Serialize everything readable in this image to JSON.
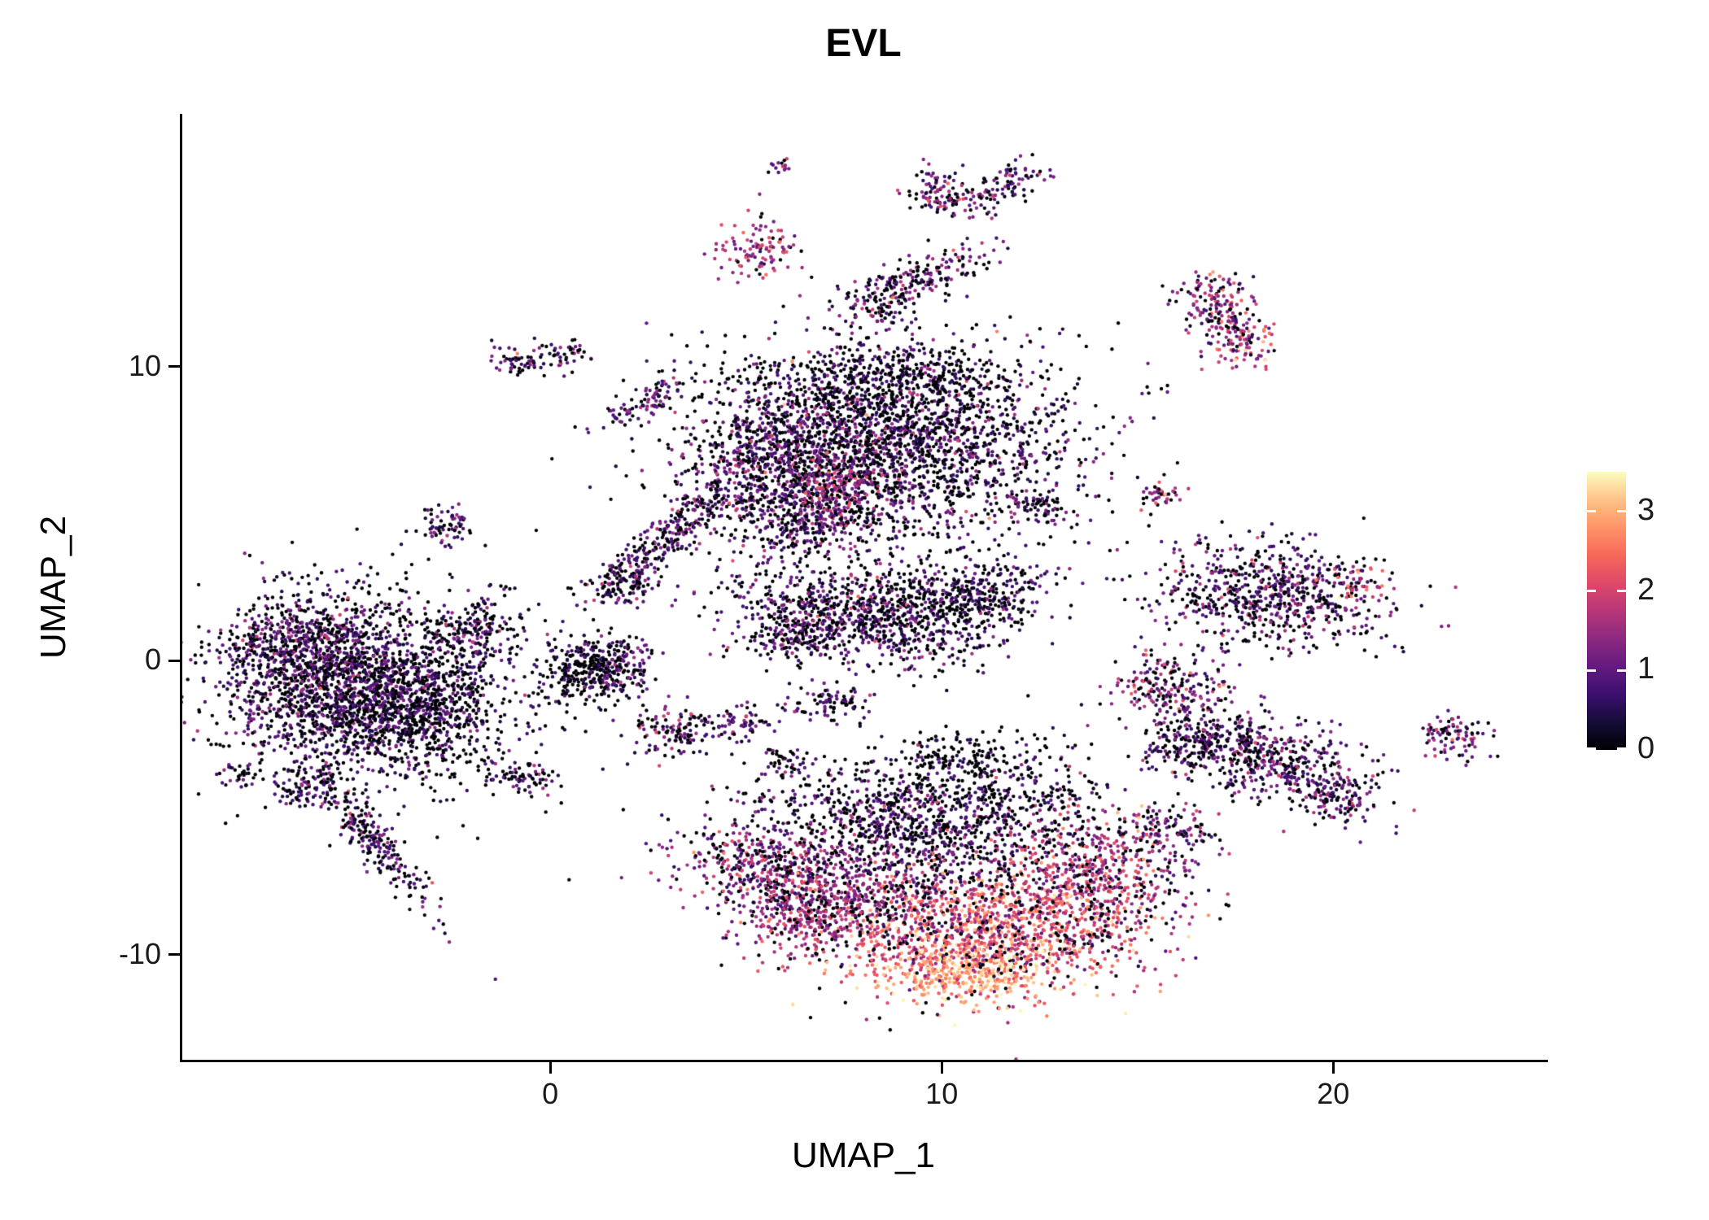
{
  "chart_data": {
    "type": "scatter",
    "title": "EVL",
    "xlabel": "UMAP_1",
    "ylabel": "UMAP_2",
    "xlim": [
      -9.4,
      25.4
    ],
    "ylim": [
      -13.6,
      18.6
    ],
    "grid": false,
    "legend_position": "right",
    "xticks": {
      "values": [
        0,
        10,
        20
      ],
      "labels": [
        "0",
        "10",
        "20"
      ]
    },
    "yticks": {
      "values": [
        -10,
        0,
        10
      ],
      "labels": [
        "-10",
        "0",
        "10"
      ]
    },
    "colorbar": {
      "min": 0,
      "max": 3.5,
      "colormap": "magma",
      "ticks": {
        "values": [
          0,
          1,
          2,
          3
        ],
        "labels": [
          "0",
          "1",
          "2",
          "3"
        ]
      }
    },
    "point_radius_px": 2.2,
    "seed": 42,
    "clusters": [
      {
        "cx": -5.2,
        "cy": -0.6,
        "sx": 1.6,
        "sy": 1.5,
        "rot": 0,
        "n": 1600,
        "zero": 0.38,
        "mean": 0.75,
        "sd": 0.45
      },
      {
        "cx": -3.4,
        "cy": -1.7,
        "sx": 1.1,
        "sy": 1.1,
        "rot": 0,
        "n": 700,
        "zero": 0.46,
        "mean": 0.7,
        "sd": 0.4
      },
      {
        "cx": -6.6,
        "cy": 0.3,
        "sx": 0.9,
        "sy": 0.9,
        "rot": 0,
        "n": 350,
        "zero": 0.3,
        "mean": 0.9,
        "sd": 0.5
      },
      {
        "cx": -4.6,
        "cy": -5.9,
        "sx": 1.6,
        "sy": 0.25,
        "rot": -59,
        "n": 260,
        "zero": 0.3,
        "mean": 0.8,
        "sd": 0.5
      },
      {
        "cx": -6.4,
        "cy": -4.4,
        "sx": 0.35,
        "sy": 0.3,
        "rot": 0,
        "n": 60,
        "zero": 0.3,
        "mean": 0.8,
        "sd": 0.4
      },
      {
        "cx": -1.9,
        "cy": 0.9,
        "sx": 0.6,
        "sy": 0.7,
        "rot": 0,
        "n": 200,
        "zero": 0.4,
        "mean": 0.8,
        "sd": 0.5
      },
      {
        "cx": -4.5,
        "cy": -1.5,
        "sx": 2.6,
        "sy": 2.2,
        "rot": 0,
        "n": 250,
        "zero": 0.65,
        "mean": 0.45,
        "sd": 0.35
      },
      {
        "cx": 0.9,
        "cy": -0.5,
        "sx": 0.65,
        "sy": 0.55,
        "rot": 0,
        "n": 260,
        "zero": 0.6,
        "mean": 0.45,
        "sd": 0.35
      },
      {
        "cx": 1.6,
        "cy": -0.1,
        "sx": 0.5,
        "sy": 0.45,
        "rot": 0,
        "n": 150,
        "zero": 0.45,
        "mean": 0.8,
        "sd": 0.45
      },
      {
        "cx": -0.7,
        "cy": -4.0,
        "sx": 0.45,
        "sy": 0.3,
        "rot": 0,
        "n": 70,
        "zero": 0.35,
        "mean": 0.8,
        "sd": 0.5
      },
      {
        "cx": -2.7,
        "cy": 4.6,
        "sx": 0.45,
        "sy": 0.35,
        "rot": 20,
        "n": 70,
        "zero": 0.3,
        "mean": 0.8,
        "sd": 0.5
      },
      {
        "cx": -7.9,
        "cy": -3.9,
        "sx": 0.25,
        "sy": 0.2,
        "rot": 0,
        "n": 30,
        "zero": 0.35,
        "mean": 0.7,
        "sd": 0.4
      },
      {
        "cx": 2.8,
        "cy": 4.1,
        "sx": 1.5,
        "sy": 0.3,
        "rot": 48,
        "n": 280,
        "zero": 0.35,
        "mean": 0.8,
        "sd": 0.5
      },
      {
        "cx": 1.9,
        "cy": 2.7,
        "sx": 0.4,
        "sy": 0.35,
        "rot": 0,
        "n": 90,
        "zero": 0.35,
        "mean": 0.9,
        "sd": 0.5
      },
      {
        "cx": 8.6,
        "cy": 7.4,
        "sx": 2.2,
        "sy": 1.6,
        "rot": 0,
        "n": 2100,
        "zero": 0.38,
        "mean": 0.8,
        "sd": 0.5,
        "hi": 0.008
      },
      {
        "cx": 5.6,
        "cy": 6.4,
        "sx": 1.1,
        "sy": 1.3,
        "rot": 0,
        "n": 650,
        "zero": 0.3,
        "mean": 0.95,
        "sd": 0.5
      },
      {
        "cx": 7.3,
        "cy": 5.9,
        "sx": 0.55,
        "sy": 0.4,
        "rot": 0,
        "n": 120,
        "zero": 0.1,
        "mean": 1.7,
        "sd": 0.4
      },
      {
        "cx": 9.0,
        "cy": 9.6,
        "sx": 1.8,
        "sy": 0.6,
        "rot": 0,
        "n": 350,
        "zero": 0.55,
        "mean": 0.5,
        "sd": 0.35
      },
      {
        "cx": 6.7,
        "cy": 4.6,
        "sx": 0.9,
        "sy": 0.5,
        "rot": 20,
        "n": 200,
        "zero": 0.35,
        "mean": 0.9,
        "sd": 0.5
      },
      {
        "cx": 8.5,
        "cy": 7.2,
        "sx": 3.2,
        "sy": 2.4,
        "rot": 0,
        "n": 300,
        "zero": 0.7,
        "mean": 0.4,
        "sd": 0.35
      },
      {
        "cx": 8.0,
        "cy": 1.6,
        "sx": 1.7,
        "sy": 0.85,
        "rot": -8,
        "n": 900,
        "zero": 0.38,
        "mean": 0.8,
        "sd": 0.5
      },
      {
        "cx": 10.8,
        "cy": 2.2,
        "sx": 1.0,
        "sy": 0.7,
        "rot": 25,
        "n": 350,
        "zero": 0.45,
        "mean": 0.7,
        "sd": 0.45
      },
      {
        "cx": 6.3,
        "cy": 0.9,
        "sx": 0.5,
        "sy": 0.4,
        "rot": 0,
        "n": 120,
        "zero": 0.4,
        "mean": 0.8,
        "sd": 0.5
      },
      {
        "cx": 7.0,
        "cy": -1.4,
        "sx": 0.5,
        "sy": 0.35,
        "rot": 0,
        "n": 90,
        "zero": 0.4,
        "mean": 0.8,
        "sd": 0.4
      },
      {
        "cx": 3.3,
        "cy": -2.4,
        "sx": 0.55,
        "sy": 0.45,
        "rot": 0,
        "n": 130,
        "zero": 0.35,
        "mean": 1.0,
        "sd": 0.6
      },
      {
        "cx": 4.9,
        "cy": -2.1,
        "sx": 0.4,
        "sy": 0.3,
        "rot": 0,
        "n": 60,
        "zero": 0.35,
        "mean": 0.9,
        "sd": 0.5
      },
      {
        "cx": 6.1,
        "cy": -3.5,
        "sx": 0.35,
        "sy": 0.3,
        "rot": 0,
        "n": 50,
        "zero": 0.35,
        "mean": 0.9,
        "sd": 0.5
      },
      {
        "cx": 5.3,
        "cy": 13.9,
        "sx": 0.5,
        "sy": 0.55,
        "rot": 0,
        "n": 110,
        "zero": 0.12,
        "mean": 1.6,
        "sd": 0.5
      },
      {
        "cx": 9.3,
        "cy": 13.0,
        "sx": 1.1,
        "sy": 0.35,
        "rot": 25,
        "n": 200,
        "zero": 0.3,
        "mean": 1.0,
        "sd": 0.55
      },
      {
        "cx": 8.4,
        "cy": 12.0,
        "sx": 0.4,
        "sy": 0.3,
        "rot": 0,
        "n": 60,
        "zero": 0.35,
        "mean": 0.9,
        "sd": 0.5
      },
      {
        "cx": 10.0,
        "cy": 15.9,
        "sx": 0.55,
        "sy": 0.4,
        "rot": -15,
        "n": 110,
        "zero": 0.25,
        "mean": 1.1,
        "sd": 0.6
      },
      {
        "cx": 11.6,
        "cy": 16.1,
        "sx": 0.6,
        "sy": 0.3,
        "rot": 35,
        "n": 90,
        "zero": 0.3,
        "mean": 1.0,
        "sd": 0.5
      },
      {
        "cx": 5.9,
        "cy": 16.8,
        "sx": 0.18,
        "sy": 0.15,
        "rot": 0,
        "n": 14,
        "zero": 0.15,
        "mean": 1.5,
        "sd": 0.4
      },
      {
        "cx": -0.8,
        "cy": 10.2,
        "sx": 0.35,
        "sy": 0.25,
        "rot": 0,
        "n": 55,
        "zero": 0.3,
        "mean": 0.9,
        "sd": 0.5
      },
      {
        "cx": 0.4,
        "cy": 10.5,
        "sx": 0.3,
        "sy": 0.25,
        "rot": 0,
        "n": 45,
        "zero": 0.3,
        "mean": 0.9,
        "sd": 0.5
      },
      {
        "cx": 2.4,
        "cy": 8.8,
        "sx": 0.7,
        "sy": 0.25,
        "rot": 35,
        "n": 90,
        "zero": 0.3,
        "mean": 0.9,
        "sd": 0.5
      },
      {
        "cx": 5.6,
        "cy": -7.2,
        "sx": 1.15,
        "sy": 0.9,
        "rot": -20,
        "n": 480,
        "zero": 0.22,
        "mean": 1.25,
        "sd": 0.55
      },
      {
        "cx": 9.0,
        "cy": -5.6,
        "sx": 1.9,
        "sy": 1.0,
        "rot": -10,
        "n": 850,
        "zero": 0.4,
        "mean": 0.75,
        "sd": 0.5
      },
      {
        "cx": 11.2,
        "cy": -9.3,
        "sx": 1.9,
        "sy": 1.05,
        "rot": 5,
        "n": 950,
        "zero": 0.06,
        "mean": 2.3,
        "sd": 0.55
      },
      {
        "cx": 10.6,
        "cy": -10.7,
        "sx": 1.0,
        "sy": 0.5,
        "rot": 0,
        "n": 300,
        "zero": 0.03,
        "mean": 2.9,
        "sd": 0.35
      },
      {
        "cx": 13.8,
        "cy": -7.3,
        "sx": 1.2,
        "sy": 1.15,
        "rot": 0,
        "n": 600,
        "zero": 0.18,
        "mean": 1.6,
        "sd": 0.6
      },
      {
        "cx": 8.3,
        "cy": -8.2,
        "sx": 1.5,
        "sy": 0.85,
        "rot": -15,
        "n": 520,
        "zero": 0.2,
        "mean": 1.4,
        "sd": 0.55
      },
      {
        "cx": 11.7,
        "cy": -4.3,
        "sx": 1.4,
        "sy": 0.9,
        "rot": 0,
        "n": 260,
        "zero": 0.55,
        "mean": 0.5,
        "sd": 0.4
      },
      {
        "cx": 12.6,
        "cy": -9.6,
        "sx": 1.2,
        "sy": 0.8,
        "rot": 0,
        "n": 150,
        "zero": 0.25,
        "mean": 1.8,
        "sd": 0.7
      },
      {
        "cx": 6.6,
        "cy": -8.8,
        "sx": 0.7,
        "sy": 0.6,
        "rot": 0,
        "n": 200,
        "zero": 0.15,
        "mean": 1.6,
        "sd": 0.5
      },
      {
        "cx": 10.3,
        "cy": -3.2,
        "sx": 1.0,
        "sy": 0.5,
        "rot": 0,
        "n": 100,
        "zero": 0.6,
        "mean": 0.4,
        "sd": 0.35
      },
      {
        "cx": 10.5,
        "cy": -7.5,
        "sx": 3.0,
        "sy": 2.2,
        "rot": 0,
        "n": 250,
        "zero": 0.6,
        "mean": 0.5,
        "sd": 0.4
      },
      {
        "cx": 15.8,
        "cy": -0.9,
        "sx": 0.7,
        "sy": 0.65,
        "rot": 0,
        "n": 220,
        "zero": 0.25,
        "mean": 1.1,
        "sd": 0.6,
        "hi": 0.04
      },
      {
        "cx": 16.4,
        "cy": -2.9,
        "sx": 0.6,
        "sy": 0.5,
        "rot": 0,
        "n": 160,
        "zero": 0.4,
        "mean": 0.8,
        "sd": 0.5
      },
      {
        "cx": 18.4,
        "cy": -3.4,
        "sx": 1.35,
        "sy": 0.7,
        "rot": -25,
        "n": 520,
        "zero": 0.3,
        "mean": 0.9,
        "sd": 0.55
      },
      {
        "cx": 20.2,
        "cy": -4.6,
        "sx": 0.5,
        "sy": 0.4,
        "rot": -30,
        "n": 90,
        "zero": 0.3,
        "mean": 0.9,
        "sd": 0.5
      },
      {
        "cx": 15.9,
        "cy": -5.8,
        "sx": 0.6,
        "sy": 0.4,
        "rot": -30,
        "n": 110,
        "zero": 0.3,
        "mean": 1.0,
        "sd": 0.6
      },
      {
        "cx": 18.4,
        "cy": 2.3,
        "sx": 1.6,
        "sy": 0.85,
        "rot": -5,
        "n": 700,
        "zero": 0.32,
        "mean": 0.9,
        "sd": 0.55,
        "hi": 0.02
      },
      {
        "cx": 20.6,
        "cy": 2.6,
        "sx": 0.4,
        "sy": 0.35,
        "rot": 0,
        "n": 40,
        "zero": 0.1,
        "mean": 1.8,
        "sd": 0.6
      },
      {
        "cx": 16.9,
        "cy": 12.2,
        "sx": 0.45,
        "sy": 0.5,
        "rot": 0,
        "n": 110,
        "zero": 0.2,
        "mean": 1.3,
        "sd": 0.6,
        "hi": 0.06
      },
      {
        "cx": 17.7,
        "cy": 10.9,
        "sx": 0.5,
        "sy": 0.5,
        "rot": 0,
        "n": 110,
        "zero": 0.15,
        "mean": 1.6,
        "sd": 0.6,
        "hi": 0.06
      },
      {
        "cx": 17.3,
        "cy": 11.5,
        "sx": 0.25,
        "sy": 0.4,
        "rot": 0,
        "n": 40,
        "zero": 0.25,
        "mean": 1.0,
        "sd": 0.5
      },
      {
        "cx": 15.6,
        "cy": 5.6,
        "sx": 0.3,
        "sy": 0.25,
        "rot": 0,
        "n": 40,
        "zero": 0.15,
        "mean": 1.4,
        "sd": 0.6
      },
      {
        "cx": 12.3,
        "cy": 5.2,
        "sx": 0.4,
        "sy": 0.3,
        "rot": 0,
        "n": 60,
        "zero": 0.3,
        "mean": 0.9,
        "sd": 0.5
      },
      {
        "cx": 23.1,
        "cy": -2.6,
        "sx": 0.45,
        "sy": 0.35,
        "rot": -20,
        "n": 90,
        "zero": 0.25,
        "mean": 1.1,
        "sd": 0.55
      }
    ]
  }
}
